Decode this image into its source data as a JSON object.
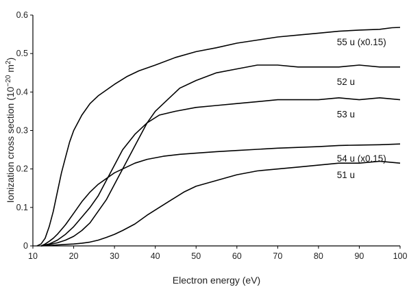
{
  "chart_data": {
    "type": "line",
    "xlabel": "Electron energy (eV)",
    "ylabel": "Ionization cross section (10",
    "ylabel_exp": "−20",
    "ylabel_unit": " m",
    "ylabel_unit_exp": "2",
    "ylabel_close": ")",
    "xlim": [
      10,
      100
    ],
    "ylim": [
      0,
      0.6
    ],
    "xticks": [
      10,
      20,
      30,
      40,
      50,
      60,
      70,
      80,
      90,
      100
    ],
    "yticks": [
      0,
      0.1,
      0.2,
      0.3,
      0.4,
      0.5,
      0.6
    ],
    "grid": false,
    "series": [
      {
        "name": "55 u (x0.15)",
        "x": [
          11,
          12,
          13,
          14,
          15,
          16,
          17,
          18,
          19,
          20,
          22,
          24,
          26,
          28,
          30,
          33,
          36,
          40,
          45,
          50,
          55,
          60,
          65,
          70,
          75,
          80,
          85,
          90,
          95,
          98,
          100
        ],
        "y": [
          0,
          0.005,
          0.02,
          0.05,
          0.09,
          0.14,
          0.19,
          0.23,
          0.27,
          0.3,
          0.34,
          0.37,
          0.39,
          0.405,
          0.42,
          0.44,
          0.455,
          0.47,
          0.49,
          0.505,
          0.515,
          0.527,
          0.535,
          0.543,
          0.548,
          0.553,
          0.558,
          0.561,
          0.563,
          0.567,
          0.568
        ]
      },
      {
        "name": "52 u",
        "x": [
          12,
          14,
          16,
          18,
          20,
          22,
          24,
          26,
          28,
          30,
          32,
          34,
          36,
          38,
          40,
          43,
          46,
          50,
          55,
          60,
          65,
          70,
          75,
          80,
          85,
          90,
          95,
          100
        ],
        "y": [
          0,
          0.004,
          0.008,
          0.015,
          0.025,
          0.04,
          0.06,
          0.09,
          0.12,
          0.16,
          0.2,
          0.24,
          0.28,
          0.32,
          0.35,
          0.38,
          0.41,
          0.43,
          0.45,
          0.46,
          0.47,
          0.47,
          0.465,
          0.465,
          0.465,
          0.47,
          0.465,
          0.465
        ]
      },
      {
        "name": "53 u",
        "x": [
          12,
          14,
          16,
          18,
          20,
          22,
          24,
          26,
          28,
          30,
          32,
          35,
          38,
          41,
          45,
          50,
          55,
          60,
          65,
          70,
          75,
          80,
          85,
          90,
          95,
          100
        ],
        "y": [
          0,
          0.005,
          0.015,
          0.03,
          0.05,
          0.075,
          0.1,
          0.13,
          0.17,
          0.21,
          0.25,
          0.29,
          0.32,
          0.34,
          0.35,
          0.36,
          0.365,
          0.37,
          0.375,
          0.38,
          0.38,
          0.38,
          0.385,
          0.38,
          0.385,
          0.38
        ]
      },
      {
        "name": "54 u (x0.15)",
        "x": [
          12,
          13,
          14,
          15,
          16,
          18,
          20,
          22,
          24,
          26,
          28,
          30,
          32,
          35,
          38,
          42,
          46,
          50,
          55,
          60,
          65,
          70,
          75,
          80,
          85,
          90,
          95,
          100
        ],
        "y": [
          0,
          0.005,
          0.012,
          0.02,
          0.03,
          0.055,
          0.085,
          0.115,
          0.14,
          0.16,
          0.175,
          0.19,
          0.2,
          0.215,
          0.225,
          0.233,
          0.238,
          0.241,
          0.245,
          0.248,
          0.251,
          0.254,
          0.256,
          0.258,
          0.261,
          0.262,
          0.263,
          0.265
        ]
      },
      {
        "name": "51 u",
        "x": [
          12,
          15,
          18,
          20,
          22,
          24,
          26,
          28,
          30,
          32,
          35,
          38,
          41,
          44,
          47,
          50,
          55,
          60,
          65,
          70,
          75,
          80,
          85,
          90,
          95,
          100
        ],
        "y": [
          0,
          0.002,
          0.004,
          0.005,
          0.007,
          0.01,
          0.015,
          0.022,
          0.03,
          0.04,
          0.057,
          0.08,
          0.1,
          0.12,
          0.14,
          0.155,
          0.17,
          0.185,
          0.195,
          0.2,
          0.205,
          0.21,
          0.215,
          0.215,
          0.22,
          0.215
        ]
      }
    ]
  }
}
